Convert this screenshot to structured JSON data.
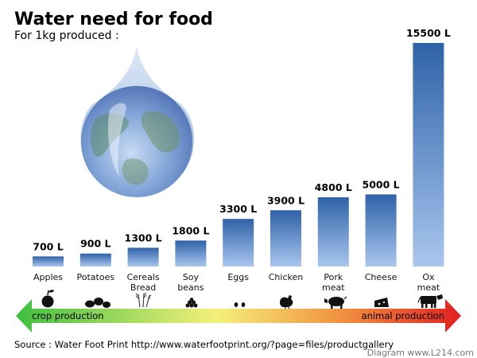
{
  "chart_data": {
    "type": "bar",
    "title": "Water need for food",
    "subtitle": "For 1kg produced :",
    "categories": [
      "Apples",
      "Potatoes",
      "Cereals\nBread",
      "Soy\nbeans",
      "Eggs",
      "Chicken",
      "Pork\nmeat",
      "Cheese",
      "Ox\nmeat"
    ],
    "values": [
      700,
      900,
      1300,
      1800,
      3300,
      3900,
      4800,
      5000,
      15500
    ],
    "value_labels": [
      "700 L",
      "900 L",
      "1300 L",
      "1800 L",
      "3300 L",
      "3900 L",
      "4800 L",
      "5000 L",
      "15500 L"
    ],
    "unit": "L",
    "ylim": [
      0,
      15500
    ],
    "grid": false,
    "legend": "none",
    "icons": [
      "apple-icon",
      "potatoes-icon",
      "wheat-icon",
      "soybeans-icon",
      "eggs-icon",
      "chicken-icon",
      "pig-icon",
      "cheese-icon",
      "cow-icon"
    ],
    "scale_bar": {
      "left_label": "crop production",
      "right_label": "animal production",
      "colors": [
        "#3fbf3f",
        "#f5f07a",
        "#f08a3c",
        "#e02020"
      ]
    },
    "source": "Source : Water Foot Print http://www.waterfootprint.org/?page=files/productgallery",
    "credit": "Diagram www.L214.com",
    "colors": {
      "bar_top": "#2e62a8",
      "bar_bottom": "#a9c6ee"
    }
  }
}
